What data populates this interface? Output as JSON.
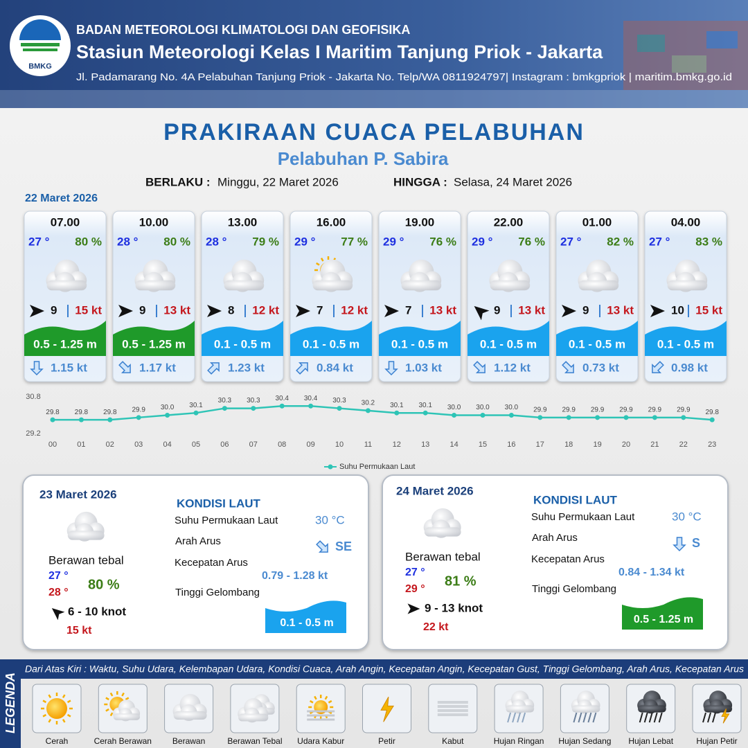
{
  "header": {
    "logo": "BMKG",
    "org": "BADAN METEOROLOGI KLIMATOLOGI DAN GEOFISIKA",
    "station": "Stasiun Meteorologi Kelas I Maritim Tanjung Priok - Jakarta",
    "address": "Jl. Padamarang No. 4A Pelabuhan Tanjung Priok - Jakarta No. Telp/WA 0811924797| Instagram : bmkgpriok | maritim.bmkg.go.id"
  },
  "title": "PRAKIRAAN CUACA PELABUHAN",
  "subtitle": "Pelabuhan P. Sabira",
  "validity": {
    "from_label": "BERLAKU :",
    "from": "Minggu, 22 Maret 2026",
    "to_label": "HINGGA :",
    "to": "Selasa, 24 Maret 2026"
  },
  "today": {
    "date": "22 Maret 2026",
    "slots": [
      {
        "time": "07.00",
        "temp": "27 °",
        "humidity": "80 %",
        "wind": "9",
        "gust": "15 kt",
        "wave": "0.5 - 1.25 m",
        "wave_color": "#1f9a2a",
        "current": "1.15 kt"
      },
      {
        "time": "10.00",
        "temp": "28 °",
        "humidity": "80 %",
        "wind": "9",
        "gust": "13 kt",
        "wave": "0.5 - 1.25 m",
        "wave_color": "#1f9a2a",
        "current": "1.17 kt"
      },
      {
        "time": "13.00",
        "temp": "28 °",
        "humidity": "79 %",
        "wind": "8",
        "gust": "12 kt",
        "wave": "0.1 - 0.5 m",
        "wave_color": "#1aa3ee",
        "current": "1.23 kt"
      },
      {
        "time": "16.00",
        "temp": "29 °",
        "humidity": "77 %",
        "wind": "7",
        "gust": "12 kt",
        "wave": "0.1 - 0.5 m",
        "wave_color": "#1aa3ee",
        "current": "0.84 kt"
      },
      {
        "time": "19.00",
        "temp": "29 °",
        "humidity": "76 %",
        "wind": "7",
        "gust": "13 kt",
        "wave": "0.1 - 0.5 m",
        "wave_color": "#1aa3ee",
        "current": "1.03 kt"
      },
      {
        "time": "22.00",
        "temp": "29 °",
        "humidity": "76 %",
        "wind": "9",
        "gust": "13 kt",
        "wave": "0.1 - 0.5 m",
        "wave_color": "#1aa3ee",
        "current": "1.12 kt"
      },
      {
        "time": "01.00",
        "temp": "27 °",
        "humidity": "82 %",
        "wind": "9",
        "gust": "13 kt",
        "wave": "0.1 - 0.5 m",
        "wave_color": "#1aa3ee",
        "current": "0.73 kt"
      },
      {
        "time": "04.00",
        "temp": "27 °",
        "humidity": "83 %",
        "wind": "10",
        "gust": "15 kt",
        "wave": "0.1 - 0.5 m",
        "wave_color": "#1aa3ee",
        "current": "0.98 kt"
      }
    ]
  },
  "chart_data": {
    "type": "line",
    "categories": [
      "00",
      "01",
      "02",
      "03",
      "04",
      "05",
      "06",
      "07",
      "08",
      "09",
      "10",
      "11",
      "12",
      "13",
      "14",
      "15",
      "16",
      "17",
      "18",
      "19",
      "20",
      "21",
      "22",
      "23"
    ],
    "series": [
      {
        "name": "Suhu Permukaan Laut",
        "color": "#2ec4b6",
        "values": [
          29.8,
          29.8,
          29.8,
          29.9,
          30,
          30.1,
          30.3,
          30.3,
          30.4,
          30.4,
          30.3,
          30.2,
          30.1,
          30.1,
          30,
          30,
          30,
          29.9,
          29.9,
          29.9,
          29.9,
          29.9,
          29.9,
          29.8
        ],
        "value_labels": [
          "29.8",
          "29.8",
          "29.8",
          "29.9",
          "30.0",
          "30.1",
          "30.3",
          "30.3",
          "30.4",
          "30.4",
          "30.3",
          "30.2",
          "30.1",
          "30.1",
          "30.0",
          "30.0",
          "30.0",
          "29.9",
          "29.9",
          "29.9",
          "29.9",
          "29.9",
          "29.9",
          "29.8"
        ]
      }
    ],
    "ylim": [
      29.2,
      30.8
    ],
    "yticks": [
      29.2,
      30.8
    ]
  },
  "days": [
    {
      "date": "23 Maret 2026",
      "condition": "Berawan tebal",
      "temp_min": "27 °",
      "temp_max": "28 °",
      "humidity": "80 %",
      "wind": "6  - 10 knot",
      "gust": "15 kt",
      "sea_title": "KONDISI LAUT",
      "sst_label": "Suhu Permukaan Laut",
      "sst": "30 °C",
      "dir_label": "Arah Arus",
      "dir": "SE",
      "speed_label": "Kecepatan Arus",
      "speed": "0.79 - 1.28 kt",
      "wave_label": "Tinggi Gelombang",
      "wave": "0.1 - 0.5 m",
      "wave_color": "#1aa3ee"
    },
    {
      "date": "24 Maret 2026",
      "condition": "Berawan tebal",
      "temp_min": "27 °",
      "temp_max": "29 °",
      "humidity": "81 %",
      "wind": "9  - 13 knot",
      "gust": "22 kt",
      "sea_title": "KONDISI LAUT",
      "sst_label": "Suhu Permukaan Laut",
      "sst": "30 °C",
      "dir_label": "Arah Arus",
      "dir": "S",
      "speed_label": "Kecepatan Arus",
      "speed": "0.84 - 1.34 kt",
      "wave_label": "Tinggi Gelombang",
      "wave": "0.5 - 1.25 m",
      "wave_color": "#1f9a2a"
    }
  ],
  "legend": {
    "title": "LEGENDA",
    "description": "Dari Atas Kiri : Waktu, Suhu Udara, Kelembapan Udara, Kondisi Cuaca, Arah Angin, Kecepatan Angin, Kecepatan Gust, Tinggi Gelombang, Arah Arus, Kecepatan Arus",
    "items": [
      "Cerah",
      "Cerah Berawan",
      "Berawan",
      "Berawan Tebal",
      "Udara Kabur",
      "Petir",
      "Kabut",
      "Hujan Ringan",
      "Hujan Sedang",
      "Hujan Lebat",
      "Hujan Petir"
    ]
  }
}
